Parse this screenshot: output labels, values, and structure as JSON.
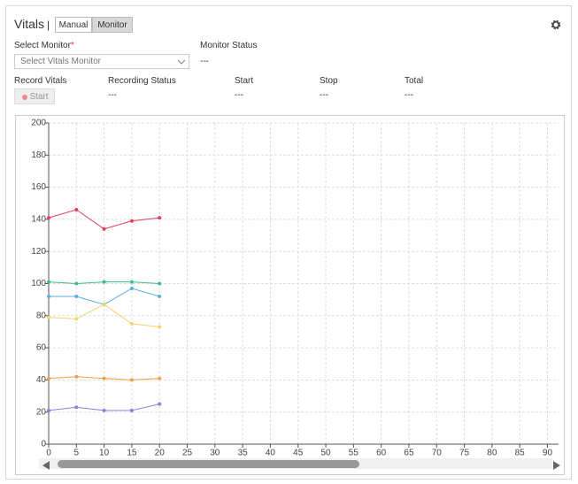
{
  "header": {
    "title": "Vitals",
    "separator": "|",
    "buttons": [
      "Manual",
      "Monitor"
    ]
  },
  "select_monitor": {
    "label": "Select Monitor",
    "required": "*",
    "placeholder": "Select Vitals Monitor"
  },
  "monitor_status": {
    "label": "Monitor Status",
    "value": "---"
  },
  "record_vitals": {
    "label": "Record Vitals",
    "button": "Start"
  },
  "fields": [
    {
      "label": "Recording Status",
      "value": "---"
    },
    {
      "label": "Start",
      "value": "---"
    },
    {
      "label": "Stop",
      "value": "---"
    },
    {
      "label": "Total",
      "value": "---"
    }
  ],
  "chart_data": {
    "type": "line",
    "x": [
      0,
      5,
      10,
      15,
      20
    ],
    "series": [
      {
        "color": "#e0405e",
        "values": [
          141,
          146,
          134,
          139,
          141
        ]
      },
      {
        "color": "#3dbd8a",
        "values": [
          101,
          100,
          101,
          101,
          100
        ]
      },
      {
        "color": "#5aaee0",
        "values": [
          92,
          92,
          87,
          97,
          92
        ]
      },
      {
        "color": "#f5d26a",
        "values": [
          79,
          78,
          87,
          75,
          73
        ]
      },
      {
        "color": "#f0a04b",
        "values": [
          41,
          42,
          41,
          40,
          41
        ]
      },
      {
        "color": "#9a7be0",
        "values": [
          21,
          23,
          21,
          21,
          25
        ]
      }
    ],
    "xlim": [
      0,
      92
    ],
    "xticks": [
      0,
      5,
      10,
      15,
      20,
      25,
      30,
      35,
      40,
      45,
      50,
      55,
      60,
      65,
      70,
      75,
      80,
      85,
      90
    ],
    "ylim": [
      0,
      200
    ],
    "yticks": [
      0,
      20,
      40,
      60,
      80,
      100,
      120,
      140,
      160,
      180,
      200
    ],
    "grid": true
  }
}
